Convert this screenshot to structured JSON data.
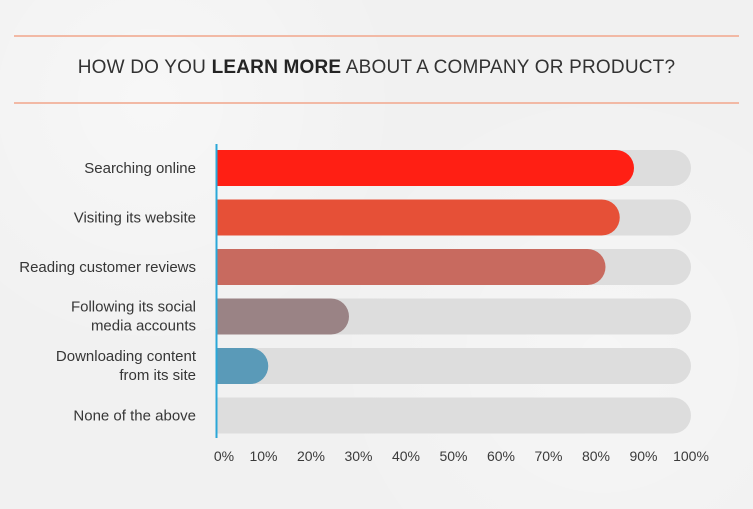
{
  "title": {
    "part1": "HOW DO YOU ",
    "highlight": "LEARN MORE",
    "part2": " ABOUT A COMPANY OR PRODUCT?"
  },
  "colors": {
    "track": "#dddddd",
    "axis": "#2aa7d8",
    "rule": "#f2b9a5"
  },
  "chart_data": {
    "type": "bar",
    "orientation": "horizontal",
    "title": "HOW DO YOU LEARN MORE ABOUT A COMPANY OR PRODUCT?",
    "categories": [
      [
        "Searching online"
      ],
      [
        "Visiting its website"
      ],
      [
        "Reading customer reviews"
      ],
      [
        "Following its social",
        "media accounts"
      ],
      [
        "Downloading content",
        "from its site"
      ],
      [
        "None of the above"
      ]
    ],
    "values": [
      88,
      85,
      82,
      28,
      11,
      0
    ],
    "bar_colors": [
      "#ff1f14",
      "#e65037",
      "#c86a5f",
      "#9a8385",
      "#5a9ab8",
      "#2aa7d8"
    ],
    "xlim": [
      0,
      100
    ],
    "xticks": [
      0,
      10,
      20,
      30,
      40,
      50,
      60,
      70,
      80,
      90,
      100
    ],
    "tick_suffix": "%",
    "grid": false,
    "legend": "none"
  }
}
